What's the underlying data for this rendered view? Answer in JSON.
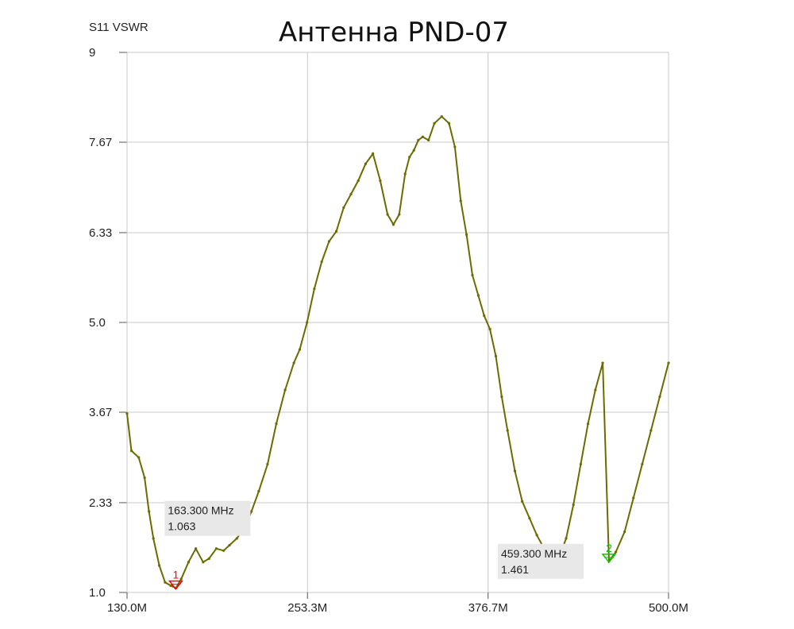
{
  "chart_data": {
    "type": "line",
    "title": "Антенна PND-07",
    "ylabel": "S11 VSWR",
    "xlabel": "",
    "x_unit": "MHz",
    "xlim": [
      130.0,
      500.0
    ],
    "ylim": [
      1.0,
      9.0
    ],
    "x_ticks": [
      130.0,
      253.3,
      376.7,
      500.0
    ],
    "x_tick_labels": [
      "130.0M",
      "253.3M",
      "376.7M",
      "500.0M"
    ],
    "y_ticks": [
      1.0,
      2.33,
      3.67,
      5.0,
      6.33,
      7.67,
      9.0
    ],
    "y_tick_labels": [
      "1.0",
      "2.33",
      "3.67",
      "5.0",
      "6.33",
      "7.67",
      "9"
    ],
    "grid": true,
    "series": [
      {
        "color": "#6b6b00",
        "x": [
          130,
          133,
          138,
          142,
          145,
          148,
          152,
          156,
          160,
          163.3,
          167,
          172,
          177,
          182,
          186,
          191,
          196,
          200,
          205,
          210,
          215,
          220,
          226,
          232,
          238,
          244,
          248,
          253,
          258,
          263,
          268,
          273,
          278,
          283,
          288,
          293,
          298,
          303,
          308,
          312,
          316,
          320,
          323,
          326,
          329,
          332,
          336,
          340,
          345,
          350,
          354,
          358,
          362,
          366,
          370,
          374,
          378,
          382,
          386,
          390,
          395,
          400,
          405,
          410,
          415,
          420,
          425,
          430,
          435,
          440,
          445,
          450,
          455,
          459.3,
          464,
          470,
          476,
          482,
          488,
          494,
          500
        ],
        "y": [
          3.65,
          3.1,
          3.0,
          2.7,
          2.2,
          1.8,
          1.4,
          1.15,
          1.1,
          1.063,
          1.2,
          1.45,
          1.65,
          1.45,
          1.5,
          1.65,
          1.62,
          1.7,
          1.8,
          1.95,
          2.2,
          2.5,
          2.9,
          3.5,
          4.0,
          4.4,
          4.6,
          5.0,
          5.5,
          5.9,
          6.2,
          6.35,
          6.7,
          6.9,
          7.1,
          7.35,
          7.5,
          7.1,
          6.6,
          6.45,
          6.6,
          7.2,
          7.45,
          7.55,
          7.7,
          7.75,
          7.7,
          7.95,
          8.05,
          7.95,
          7.6,
          6.8,
          6.3,
          5.7,
          5.4,
          5.1,
          4.9,
          4.5,
          3.9,
          3.4,
          2.8,
          2.35,
          2.1,
          1.85,
          1.65,
          1.461,
          1.5,
          1.8,
          2.3,
          2.9,
          3.5,
          4.0,
          4.4,
          1.461,
          1.6,
          1.9,
          2.4,
          2.9,
          3.4,
          3.9,
          4.4
        ]
      }
    ],
    "markers": [
      {
        "id": "1",
        "color": "#ff0000",
        "x": 163.3,
        "y": 1.063,
        "freq_label": "163.300 MHz",
        "value_label": "1.063"
      },
      {
        "id": "2",
        "color": "#00cc00",
        "x": 459.3,
        "y": 1.461,
        "freq_label": "459.300 MHz",
        "value_label": "1.461"
      }
    ]
  }
}
